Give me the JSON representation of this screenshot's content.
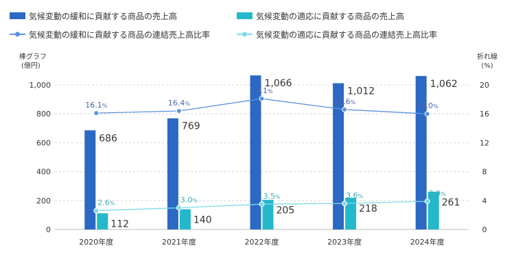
{
  "chart_data": {
    "type": "bar+line",
    "categories": [
      "2020年度",
      "2021年度",
      "2022年度",
      "2023年度",
      "2024年度"
    ],
    "series": [
      {
        "name": "気候変動の緩和に貢献する商品の売上高",
        "kind": "bar",
        "axis": "left",
        "values": [
          686,
          769,
          1066,
          1012,
          1062
        ],
        "color": "#2b69c4"
      },
      {
        "name": "気候変動の適応に貢献する商品の売上高",
        "kind": "bar",
        "axis": "left",
        "values": [
          112,
          140,
          205,
          218,
          261
        ],
        "color": "#24b8cb"
      },
      {
        "name": "気候変動の緩和に貢献する商品の連結売上高比率",
        "kind": "line",
        "axis": "right",
        "values": [
          16.1,
          16.4,
          18.1,
          16.6,
          16.0
        ],
        "color": "#5b92dd",
        "label_color": "#4d63ad"
      },
      {
        "name": "気候変動の適応に貢献する商品の連結売上高比率",
        "kind": "line",
        "axis": "right",
        "values": [
          2.6,
          3.0,
          3.5,
          3.6,
          3.9
        ],
        "color": "#7fd9e8",
        "label_color": "#3eaab9"
      }
    ],
    "left_axis": {
      "label_line1": "棒グラフ",
      "label_line2": "(億円)",
      "range": [
        0,
        1000
      ],
      "ticks": [
        "0",
        "200",
        "400",
        "600",
        "800",
        "1,000"
      ]
    },
    "right_axis": {
      "label_line1": "折れ線",
      "label_line2": "(%)",
      "range": [
        0,
        20
      ],
      "ticks": [
        "0",
        "4",
        "8",
        "12",
        "16",
        "20"
      ]
    },
    "value_labels_left": [
      "686",
      "769",
      "1,066",
      "1,012",
      "1,062"
    ],
    "value_labels_teal": [
      "112",
      "140",
      "205",
      "218",
      "261"
    ],
    "pct_labels_blue": [
      "16.1",
      "16.4",
      "18.1",
      "16.6",
      "16.0"
    ],
    "pct_labels_teal": [
      "2.6",
      "3.0",
      "3.5",
      "3.6",
      "3.9"
    ],
    "pct_unit": "%",
    "grid": true,
    "legend_placement": "top"
  }
}
